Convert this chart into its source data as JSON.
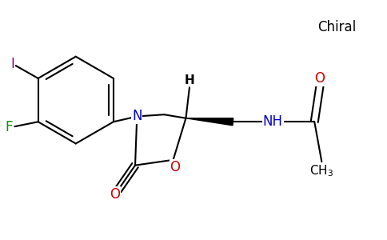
{
  "background_color": "#ffffff",
  "chiral_label": "Chiral",
  "bond_color": "#000000",
  "bond_width": 1.5,
  "atom_colors": {
    "N": "#0000cc",
    "O": "#cc0000",
    "F": "#009900",
    "I": "#880088",
    "NH": "#0000cc",
    "H": "#000000"
  },
  "figsize": [
    4.84,
    3.0
  ],
  "dpi": 100
}
